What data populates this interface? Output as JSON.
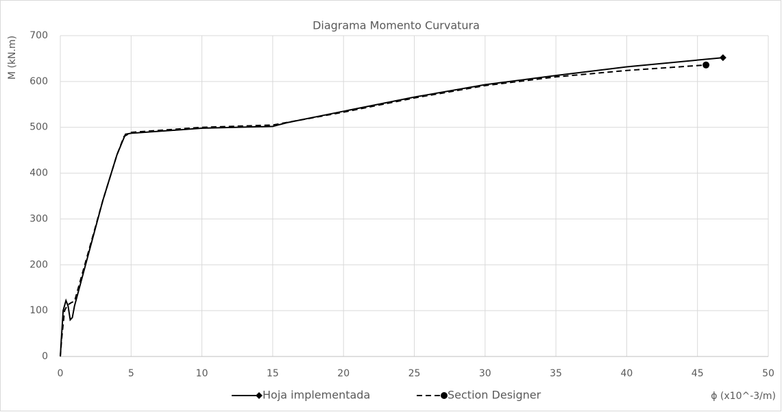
{
  "chart_data": {
    "type": "line",
    "title": "Diagrama Momento Curvatura",
    "y_label": "M (kN.m)",
    "x_label": "ϕ (x10^-3/m)",
    "xlim": [
      0,
      50
    ],
    "xticks": [
      0,
      5,
      10,
      15,
      20,
      25,
      30,
      35,
      40,
      45,
      50
    ],
    "ylim": [
      0,
      700
    ],
    "yticks": [
      0,
      100,
      200,
      300,
      400,
      500,
      600,
      700
    ],
    "grid": true,
    "legend": "bottom",
    "series": [
      {
        "name": "Hoja implementada",
        "color": "#000000",
        "dash": "solid",
        "marker": "diamond",
        "x": [
          0,
          0.2,
          0.4,
          0.55,
          0.7,
          0.85,
          1,
          2,
          3,
          4,
          4.6,
          5,
          10,
          15,
          16,
          20,
          25,
          30,
          35,
          40,
          46.8
        ],
        "values": [
          0,
          100,
          122,
          110,
          80,
          85,
          110,
          225,
          340,
          440,
          485,
          487,
          498,
          502,
          510,
          535,
          566,
          593,
          613,
          632,
          652
        ]
      },
      {
        "name": "Section Designer",
        "color": "#000000",
        "dash": "dashed",
        "marker": "circle",
        "x": [
          0,
          0.1,
          0.3,
          0.5,
          0.8,
          1,
          2,
          3,
          4,
          4.5,
          5,
          10,
          15,
          20,
          25,
          30,
          35,
          40,
          45.6
        ],
        "values": [
          0,
          40,
          100,
          112,
          118,
          120,
          230,
          340,
          440,
          480,
          489,
          500,
          505,
          533,
          564,
          591,
          610,
          624,
          636
        ]
      }
    ]
  }
}
